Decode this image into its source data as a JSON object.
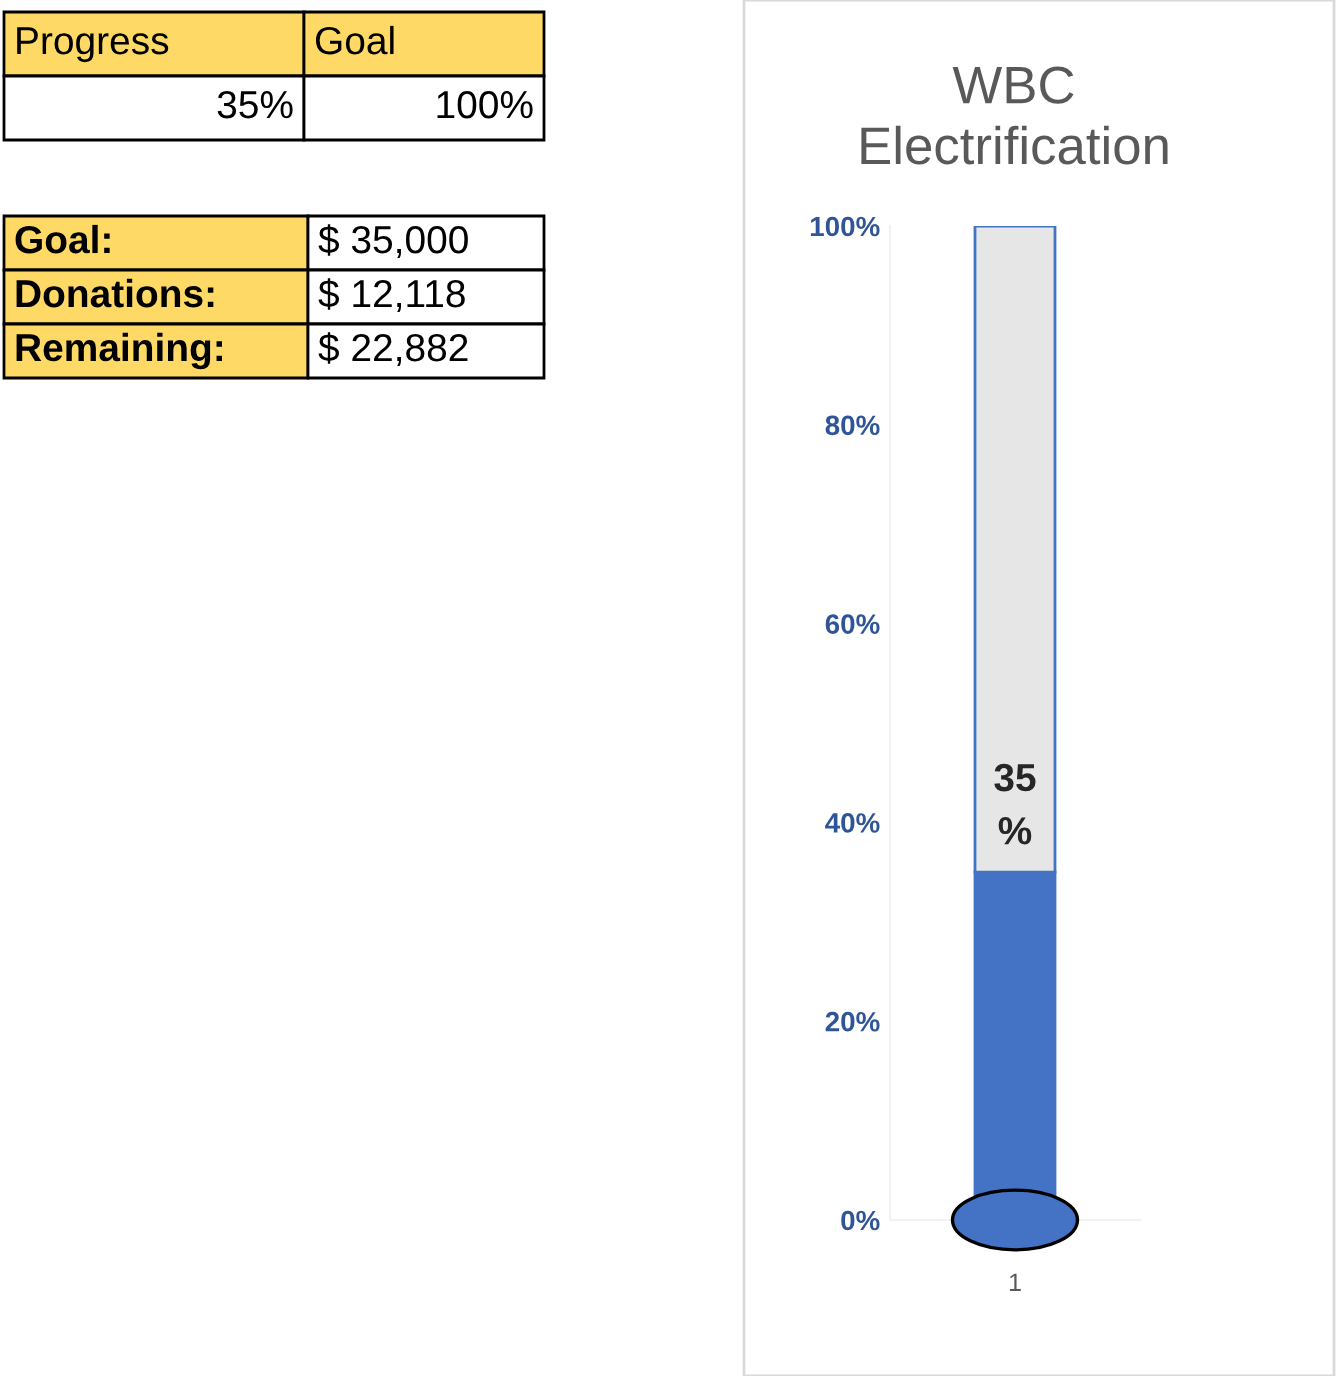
{
  "chart_data": {
    "type": "bar",
    "title": "WBC\nElectrification",
    "stacked": true,
    "categories": [
      "1"
    ],
    "series": [
      {
        "color": "#4472c4",
        "values": [
          35
        ],
        "value_labels": [
          "35\n%"
        ]
      },
      {
        "color": "#e7e6e6",
        "values": [
          65
        ]
      }
    ],
    "ylim": [
      0,
      100
    ],
    "yticks": [
      {
        "value": 0,
        "label": "0%"
      },
      {
        "value": 20,
        "label": "20%"
      },
      {
        "value": 40,
        "label": "40%"
      },
      {
        "value": 60,
        "label": "60%"
      },
      {
        "value": 80,
        "label": "80%"
      },
      {
        "value": 100,
        "label": "100%"
      }
    ],
    "grid": false,
    "legend": false,
    "annotations": [
      "Progress",
      "Goal",
      "35%",
      "100%",
      "Goal:",
      "$ 35,000",
      "Donations:",
      "$ 12,118",
      "Remaining:",
      "$ 22,882"
    ]
  }
}
